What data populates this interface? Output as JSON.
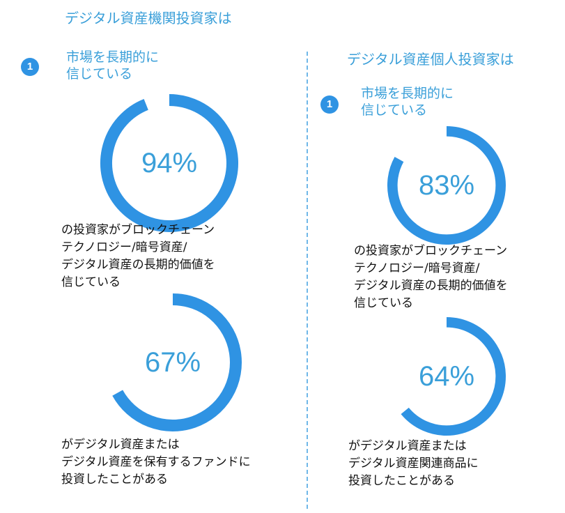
{
  "left": {
    "heading": "デジタル資産機関投資家は",
    "badge": "1",
    "subheading": [
      "市場を長期的に",
      "信じている"
    ],
    "captions": [
      [
        "の投資家がブロックチェーン",
        "テクノロジー/暗号資産/",
        "デジタル資産の長期的価値を",
        "信じている"
      ],
      [
        "がデジタル資産または",
        "デジタル資産を保有するファンドに",
        "投資したことがある"
      ]
    ]
  },
  "right": {
    "heading": "デジタル資産個人投資家は",
    "badge": "1",
    "subheading": [
      "市場を長期的に",
      "信じている"
    ],
    "captions": [
      [
        "の投資家がブロックチェーン",
        "テクノロジー/暗号資産/",
        "デジタル資産の長期的価値を",
        "信じている"
      ],
      [
        "がデジタル資産または",
        "デジタル資産関連商品に",
        "投資したことがある"
      ]
    ]
  },
  "colors": {
    "accent": "#2f93e3",
    "heading": "#3a9fd9",
    "divider": "#6fb7e8"
  },
  "chart_data": [
    {
      "type": "donut",
      "group": "デジタル資産機関投資家",
      "value": 94,
      "label": "94%"
    },
    {
      "type": "donut",
      "group": "デジタル資産機関投資家",
      "value": 67,
      "label": "67%"
    },
    {
      "type": "donut",
      "group": "デジタル資産個人投資家",
      "value": 83,
      "label": "83%"
    },
    {
      "type": "donut",
      "group": "デジタル資産個人投資家",
      "value": 64,
      "label": "64%"
    }
  ]
}
